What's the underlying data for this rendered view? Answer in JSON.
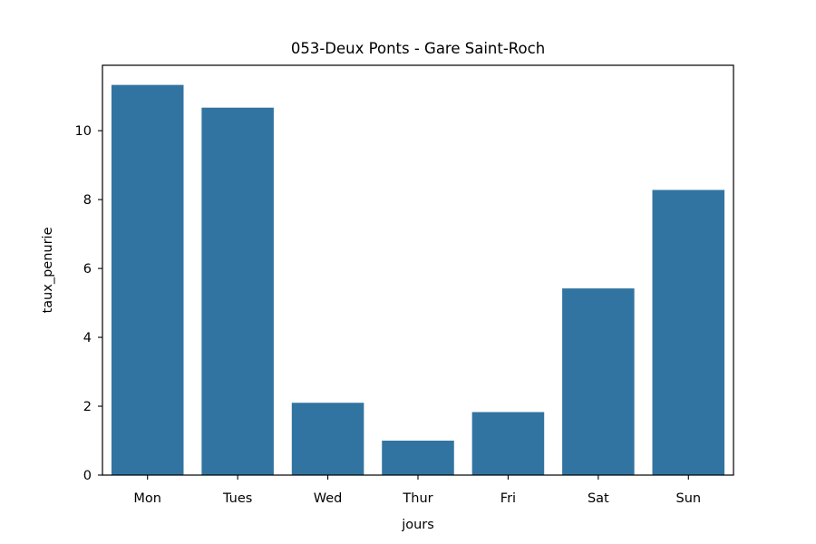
{
  "chart_data": {
    "type": "bar",
    "title": "053-Deux Ponts - Gare Saint-Roch",
    "xlabel": "jours",
    "ylabel": "taux_penurie",
    "categories": [
      "Mon",
      "Tues",
      "Wed",
      "Thur",
      "Fri",
      "Sat",
      "Sun"
    ],
    "values": [
      11.33,
      10.67,
      2.1,
      1.0,
      1.83,
      5.42,
      8.28
    ],
    "ylim": [
      0,
      11.9
    ],
    "yticks": [
      0,
      2,
      4,
      6,
      8,
      10
    ],
    "grid": false,
    "bar_color": "#3274a1"
  }
}
